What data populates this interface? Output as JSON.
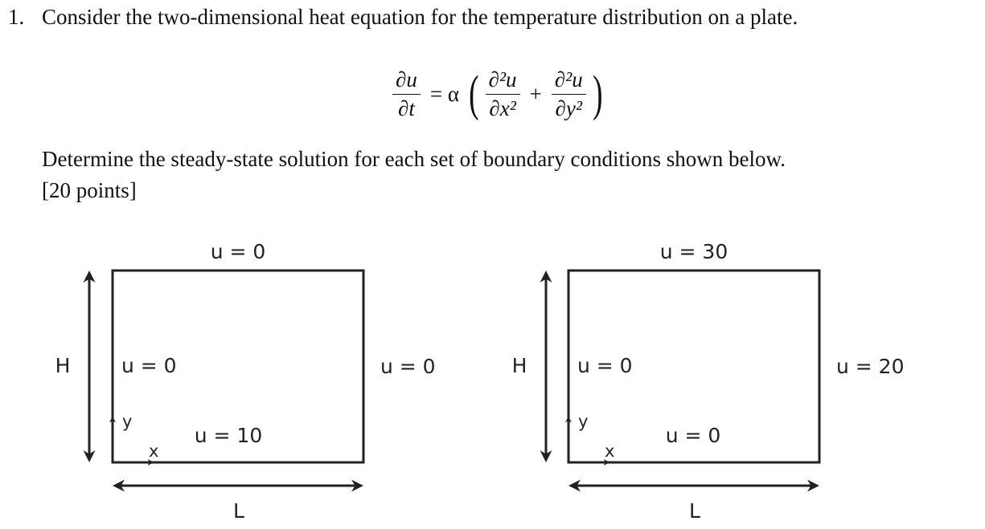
{
  "problem": {
    "number": "1.",
    "intro": "Consider the two-dimensional heat equation for the temperature distribution on a plate.",
    "equation": {
      "lhs_num": "∂u",
      "lhs_den": "∂t",
      "equals": "= α",
      "t1_num": "∂²u",
      "t1_den": "∂x²",
      "plus": "+",
      "t2_num": "∂²u",
      "t2_den": "∂y²"
    },
    "instruction": "Determine the steady-state solution for each set of boundary conditions shown below.",
    "points": "[20 points]"
  },
  "diagrams": [
    {
      "top": "u = 0",
      "left": "u = 0",
      "right": "u = 0",
      "bottom": "u = 10",
      "height_label": "H",
      "length_label": "L",
      "x_label": "x",
      "y_label": "y"
    },
    {
      "top": "u = 30",
      "left": "u = 0",
      "right": "u = 20",
      "bottom": "u = 0",
      "height_label": "H",
      "length_label": "L",
      "x_label": "x",
      "y_label": "y"
    }
  ]
}
